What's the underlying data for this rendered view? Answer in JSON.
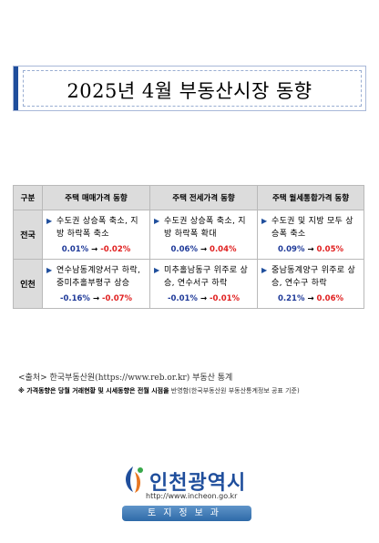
{
  "title": "2025년 4월 부동산시장 동향",
  "table": {
    "headers": [
      "구분",
      "주택 매매가격 동향",
      "주택 전세가격 동향",
      "주택 월세통합가격 동향"
    ],
    "rows": [
      {
        "region": "전국",
        "cells": [
          {
            "desc": "수도권 상승폭 축소, 지방 하락폭 축소",
            "from": "0.01%",
            "to": "-0.02%"
          },
          {
            "desc": "수도권 상승폭 축소, 지방 하락폭 확대",
            "from": "0.06%",
            "to": "0.04%"
          },
          {
            "desc": "수도권 및 지방 모두 상승폭 축소",
            "from": "0.09%",
            "to": "0.05%"
          }
        ]
      },
      {
        "region": "인천",
        "cells": [
          {
            "desc": "연수남동계양서구 하락, 중미추홀부평구 상승",
            "from": "-0.16%",
            "to": "-0.07%"
          },
          {
            "desc": "미추홀남동구 위주로 상승, 연수서구 하락",
            "from": "-0.01%",
            "to": "-0.01%"
          },
          {
            "desc": "중남동계양구 위주로 상승, 연수구 하락",
            "from": "0.21%",
            "to": "0.06%"
          }
        ]
      }
    ],
    "arrow": "→"
  },
  "source": "<출처> 한국부동산원(https://www.reb.or.kr) 부동산 통계",
  "note": {
    "prefix": "※ 가격동향은 당월 거래현황 및 시세동향은 전월 시점을",
    "suffix": " 반영함(한국부동산원 부동산통계정보 공표 기준)"
  },
  "logo": {
    "name": "인천광역시",
    "url": "http://www.incheon.go.kr",
    "badge": "토지정보과"
  },
  "colors": {
    "brand": "#1f4e9c",
    "decrease": "#1f3a99",
    "increase": "#e02020"
  }
}
